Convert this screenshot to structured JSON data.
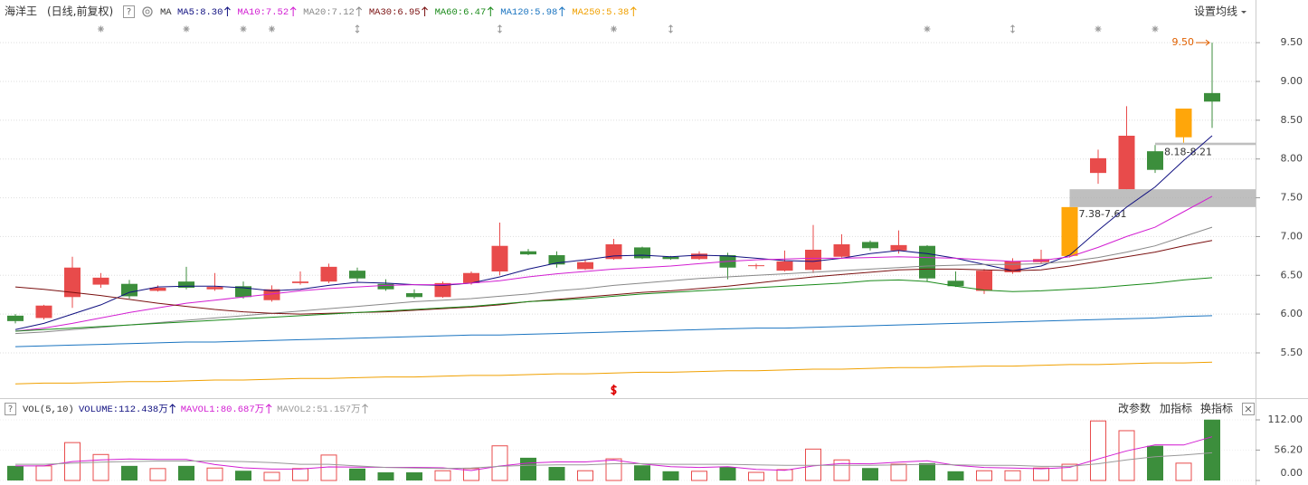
{
  "header": {
    "title": "海洋王",
    "subtitle": "(日线,前复权)",
    "help": "?",
    "ma_label": "MA",
    "settings": "设置均线"
  },
  "volume_toolbar": {
    "buttons": [
      "改参数",
      "加指标",
      "换指标"
    ]
  },
  "chart_data": [
    {
      "type": "candlestick",
      "ylim": [
        4.94,
        9.77
      ],
      "yticks": [
        {
          "value": 5.5,
          "label": "5.50"
        },
        {
          "value": 6,
          "label": "6.00"
        },
        {
          "value": 6.5,
          "label": "6.50"
        },
        {
          "value": 7,
          "label": "7.00"
        },
        {
          "value": 7.5,
          "label": "7.50"
        },
        {
          "value": 8,
          "label": "8.00"
        },
        {
          "value": 8.5,
          "label": "8.50"
        },
        {
          "value": 9,
          "label": "9.00"
        },
        {
          "value": 9.5,
          "label": "9.50"
        }
      ],
      "grid": true,
      "up_color": "#e84b4b",
      "down_color": "#3c8e3c",
      "limit_up_color": "#ffa60a",
      "open": [
        5.98,
        5.95,
        6.22,
        6.38,
        6.39,
        6.3,
        6.42,
        6.32,
        6.36,
        6.18,
        6.4,
        6.42,
        6.56,
        6.39,
        6.27,
        6.22,
        6.4,
        6.55,
        6.81,
        6.76,
        6.58,
        6.71,
        6.86,
        6.74,
        6.71,
        6.76,
        6.62,
        6.56,
        6.57,
        6.74,
        6.93,
        6.82,
        6.88,
        6.43,
        6.3,
        6.54,
        6.67,
        6.75,
        7.82,
        7.61,
        8.1,
        8.28,
        8.85
      ],
      "high": [
        6.0,
        6.12,
        6.74,
        6.53,
        6.44,
        6.37,
        6.61,
        6.53,
        6.42,
        6.37,
        6.55,
        6.65,
        6.6,
        6.45,
        6.32,
        6.42,
        6.55,
        7.18,
        6.84,
        6.81,
        6.7,
        6.97,
        6.87,
        6.75,
        6.81,
        6.79,
        6.65,
        6.82,
        7.15,
        7.03,
        6.95,
        7.08,
        6.89,
        6.55,
        6.58,
        6.72,
        6.83,
        7.38,
        8.12,
        8.68,
        8.18,
        8.65,
        9.5
      ],
      "low": [
        5.88,
        5.93,
        6.08,
        6.34,
        6.2,
        6.29,
        6.32,
        6.3,
        6.2,
        6.16,
        6.38,
        6.4,
        6.42,
        6.3,
        6.2,
        6.21,
        6.38,
        6.5,
        6.76,
        6.6,
        6.57,
        6.7,
        6.71,
        6.7,
        6.7,
        6.45,
        6.58,
        6.55,
        6.53,
        6.73,
        6.82,
        6.78,
        6.42,
        6.35,
        6.26,
        6.52,
        6.65,
        6.73,
        7.68,
        7.61,
        7.82,
        8.21,
        8.4
      ],
      "close": [
        5.91,
        6.11,
        6.6,
        6.47,
        6.23,
        6.34,
        6.34,
        6.35,
        6.22,
        6.32,
        6.42,
        6.61,
        6.46,
        6.32,
        6.22,
        6.4,
        6.53,
        6.88,
        6.77,
        6.64,
        6.67,
        6.9,
        6.72,
        6.71,
        6.78,
        6.6,
        6.63,
        6.68,
        6.83,
        6.9,
        6.85,
        6.89,
        6.46,
        6.36,
        6.56,
        6.68,
        6.71,
        7.38,
        8.01,
        8.3,
        7.86,
        8.65,
        8.74
      ],
      "series": [
        {
          "name": "MA5",
          "legend_label": "MA5:8.30",
          "color": "#101080",
          "values": [
            5.8,
            5.88,
            6.0,
            6.12,
            6.28,
            6.35,
            6.36,
            6.36,
            6.34,
            6.3,
            6.32,
            6.37,
            6.41,
            6.4,
            6.38,
            6.37,
            6.4,
            6.48,
            6.58,
            6.66,
            6.7,
            6.75,
            6.76,
            6.74,
            6.76,
            6.75,
            6.72,
            6.69,
            6.68,
            6.72,
            6.78,
            6.82,
            6.78,
            6.72,
            6.64,
            6.56,
            6.62,
            6.76,
            7.08,
            7.38,
            7.64,
            7.98,
            8.3
          ]
        },
        {
          "name": "MA10",
          "legend_label": "MA10:7.52",
          "color": "#d21ed2",
          "values": [
            5.78,
            5.82,
            5.88,
            5.95,
            6.02,
            6.08,
            6.14,
            6.18,
            6.22,
            6.26,
            6.3,
            6.33,
            6.35,
            6.37,
            6.38,
            6.38,
            6.4,
            6.43,
            6.48,
            6.52,
            6.55,
            6.58,
            6.6,
            6.62,
            6.65,
            6.68,
            6.7,
            6.71,
            6.72,
            6.72,
            6.73,
            6.74,
            6.73,
            6.72,
            6.7,
            6.68,
            6.69,
            6.74,
            6.86,
            7.0,
            7.12,
            7.32,
            7.52
          ]
        },
        {
          "name": "MA20",
          "legend_label": "MA20:7.12",
          "color": "#888888",
          "values": [
            5.75,
            5.77,
            5.8,
            5.83,
            5.86,
            5.89,
            5.92,
            5.95,
            5.98,
            6.01,
            6.04,
            6.07,
            6.1,
            6.13,
            6.16,
            6.18,
            6.2,
            6.23,
            6.26,
            6.3,
            6.33,
            6.37,
            6.4,
            6.43,
            6.46,
            6.48,
            6.5,
            6.52,
            6.54,
            6.56,
            6.58,
            6.6,
            6.62,
            6.63,
            6.64,
            6.64,
            6.65,
            6.68,
            6.73,
            6.8,
            6.88,
            7.0,
            7.12
          ]
        },
        {
          "name": "MA30",
          "legend_label": "MA30:6.95",
          "color": "#7a1010",
          "values": [
            6.35,
            6.32,
            6.28,
            6.24,
            6.19,
            6.14,
            6.1,
            6.06,
            6.03,
            6.01,
            6.0,
            6.01,
            6.02,
            6.03,
            6.05,
            6.07,
            6.09,
            6.12,
            6.16,
            6.19,
            6.22,
            6.25,
            6.28,
            6.3,
            6.33,
            6.36,
            6.4,
            6.44,
            6.48,
            6.51,
            6.54,
            6.57,
            6.58,
            6.58,
            6.57,
            6.56,
            6.57,
            6.62,
            6.68,
            6.74,
            6.8,
            6.88,
            6.95
          ]
        },
        {
          "name": "MA60",
          "legend_label": "MA60:6.47",
          "color": "#1a8a1a",
          "values": [
            5.78,
            5.8,
            5.82,
            5.84,
            5.86,
            5.88,
            5.9,
            5.92,
            5.94,
            5.96,
            5.98,
            6.0,
            6.02,
            6.04,
            6.06,
            6.08,
            6.1,
            6.13,
            6.16,
            6.18,
            6.2,
            6.23,
            6.26,
            6.28,
            6.3,
            6.32,
            6.34,
            6.36,
            6.38,
            6.4,
            6.43,
            6.44,
            6.42,
            6.36,
            6.31,
            6.29,
            6.3,
            6.32,
            6.34,
            6.37,
            6.4,
            6.44,
            6.47
          ]
        },
        {
          "name": "MA120",
          "legend_label": "MA120:5.98",
          "color": "#1a74c0",
          "values": [
            5.58,
            5.59,
            5.6,
            5.61,
            5.62,
            5.63,
            5.64,
            5.64,
            5.65,
            5.66,
            5.67,
            5.68,
            5.69,
            5.7,
            5.71,
            5.72,
            5.73,
            5.73,
            5.74,
            5.75,
            5.76,
            5.77,
            5.78,
            5.79,
            5.8,
            5.81,
            5.82,
            5.82,
            5.83,
            5.84,
            5.85,
            5.86,
            5.87,
            5.88,
            5.89,
            5.9,
            5.91,
            5.92,
            5.93,
            5.94,
            5.95,
            5.97,
            5.98
          ]
        },
        {
          "name": "MA250",
          "legend_label": "MA250:5.38",
          "color": "#f0a000",
          "values": [
            5.1,
            5.11,
            5.11,
            5.12,
            5.13,
            5.13,
            5.14,
            5.15,
            5.15,
            5.16,
            5.17,
            5.17,
            5.18,
            5.19,
            5.19,
            5.2,
            5.21,
            5.21,
            5.22,
            5.23,
            5.23,
            5.24,
            5.25,
            5.25,
            5.26,
            5.27,
            5.27,
            5.28,
            5.29,
            5.29,
            5.3,
            5.31,
            5.31,
            5.32,
            5.33,
            5.33,
            5.34,
            5.35,
            5.35,
            5.36,
            5.37,
            5.37,
            5.38
          ]
        }
      ],
      "gaps": [
        {
          "low": 7.38,
          "high": 7.61,
          "label": "7.38-7.61"
        },
        {
          "low": 8.18,
          "high": 8.21,
          "label": "8.18-8.21"
        }
      ],
      "annotations": [
        {
          "value": 9.5,
          "label": "9.50"
        }
      ]
    },
    {
      "type": "volume_bar",
      "legend_label": "VOL(5,10)",
      "value_label": "VOLUME:112.438万",
      "color": "#101080",
      "ylim": [
        0,
        118.7
      ],
      "yticks": [
        {
          "value": 112,
          "label": "112.00"
        },
        {
          "value": 56.2,
          "label": "56.20"
        },
        {
          "value": 0,
          "label": "0.00"
        }
      ],
      "values": [
        27,
        27,
        70,
        48,
        27,
        22,
        27,
        23,
        18,
        15,
        22,
        47,
        22,
        15,
        15,
        18,
        22,
        64,
        42,
        25,
        18,
        40,
        28,
        17,
        17,
        25,
        15,
        20,
        58,
        38,
        23,
        30,
        32,
        17,
        18,
        18,
        23,
        30,
        110,
        92,
        64,
        32,
        112.438
      ],
      "series": [
        {
          "name": "MAVOL1",
          "legend_label": "MAVOL1:80.687万",
          "color": "#d21ed2",
          "values": [
            27,
            27,
            35,
            38,
            39.8,
            38.8,
            38.8,
            29.4,
            23.4,
            21,
            21,
            25,
            24.8,
            24.2,
            24.2,
            23.4,
            18.4,
            26.8,
            32.2,
            34.2,
            34.2,
            37.8,
            30.6,
            25.6,
            24,
            25.4,
            20.4,
            18.8,
            27,
            31.2,
            30.8,
            33.8,
            36.2,
            28,
            24,
            23,
            21.6,
            24.2,
            39.8,
            54.6,
            65.8,
            65.6,
            80.687
          ]
        },
        {
          "name": "MAVOL2",
          "legend_label": "MAVOL2:51.157万",
          "color": "#999999",
          "values": [
            30,
            30,
            32,
            34,
            35,
            36,
            36,
            36,
            35,
            33,
            30,
            30,
            27,
            24,
            23,
            22,
            23,
            26,
            28,
            29,
            29,
            31,
            31,
            30,
            30,
            30,
            29,
            28,
            28,
            28,
            28,
            29,
            30,
            29,
            28,
            28,
            26,
            26,
            31,
            38,
            44,
            47,
            51.157
          ]
        }
      ]
    }
  ]
}
